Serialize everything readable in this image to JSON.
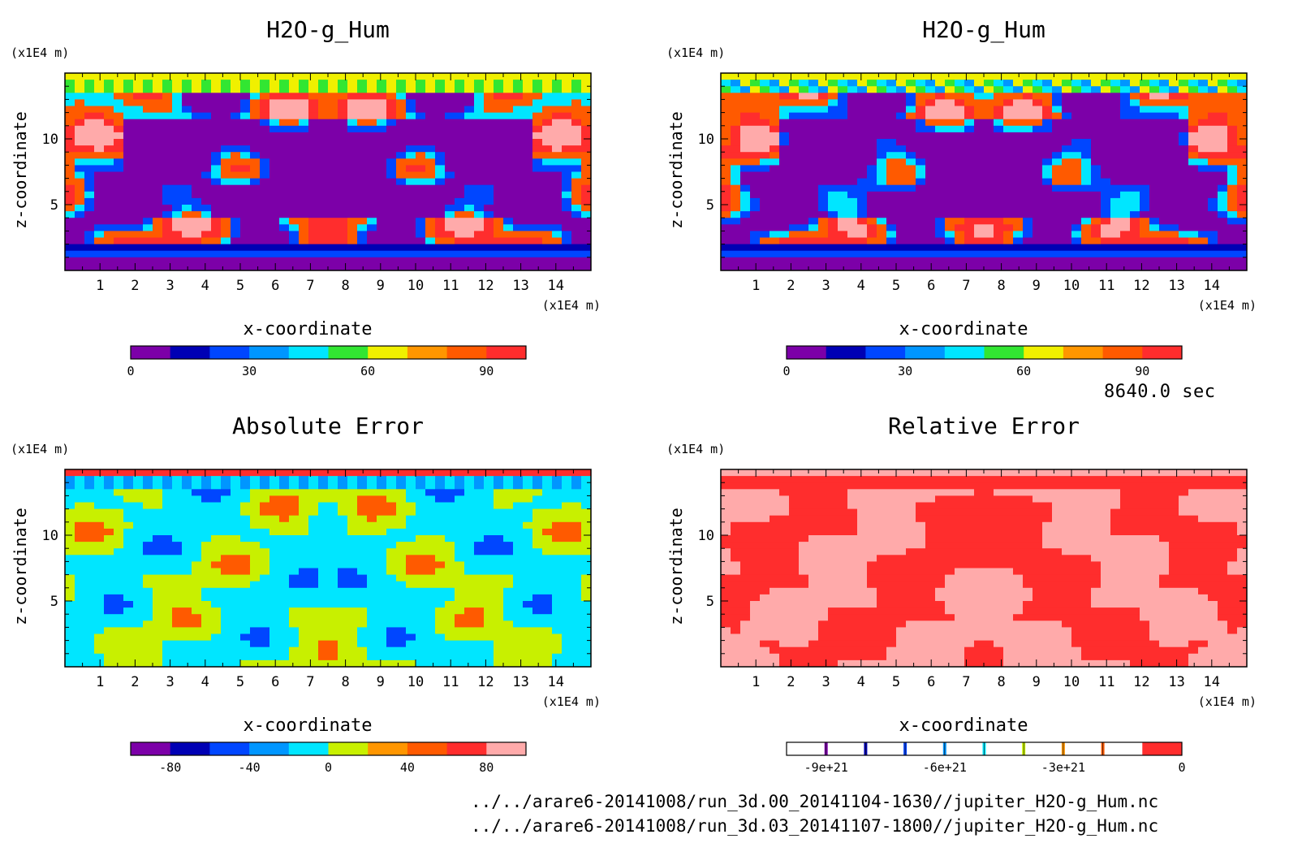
{
  "time_label": "8640.0 sec",
  "files": [
    "../../arare6-20141008/run_3d.00_20141104-1630//jupiter_H2O-g_Hum.nc",
    "../../arare6-20141008/run_3d.03_20141107-1800//jupiter_H2O-g_Hum.nc"
  ],
  "chart_data": [
    {
      "type": "heatmap",
      "title": "H2O-g_Hum",
      "xlabel": "x-coordinate",
      "ylabel": "z-coordinate",
      "x_unit": "(x1E4 m)",
      "y_unit": "(x1E4 m)",
      "xlim": [
        0,
        15
      ],
      "ylim": [
        0,
        15
      ],
      "x_ticks": [
        "1",
        "2",
        "3",
        "4",
        "5",
        "6",
        "7",
        "8",
        "9",
        "10",
        "11",
        "12",
        "13",
        "14"
      ],
      "y_ticks": [
        "5",
        "10"
      ],
      "colorbar": {
        "colors": [
          "#7c00a8",
          "#0000b4",
          "#0046ff",
          "#0096ff",
          "#00e6ff",
          "#32e632",
          "#f0f000",
          "#ff9600",
          "#ff5a00",
          "#ff2d2d"
        ],
        "ticks": [
          "0",
          "30",
          "60",
          "90"
        ],
        "range": [
          0,
          100
        ]
      }
    },
    {
      "type": "heatmap",
      "title": "H2O-g_Hum",
      "xlabel": "x-coordinate",
      "ylabel": "z-coordinate",
      "x_unit": "(x1E4 m)",
      "y_unit": "(x1E4 m)",
      "xlim": [
        0,
        15
      ],
      "ylim": [
        0,
        15
      ],
      "x_ticks": [
        "1",
        "2",
        "3",
        "4",
        "5",
        "6",
        "7",
        "8",
        "9",
        "10",
        "11",
        "12",
        "13",
        "14"
      ],
      "y_ticks": [
        "5",
        "10"
      ],
      "colorbar": {
        "colors": [
          "#7c00a8",
          "#0000b4",
          "#0046ff",
          "#0096ff",
          "#00e6ff",
          "#32e632",
          "#f0f000",
          "#ff9600",
          "#ff5a00",
          "#ff2d2d"
        ],
        "ticks": [
          "0",
          "30",
          "60",
          "90"
        ],
        "range": [
          0,
          100
        ]
      }
    },
    {
      "type": "heatmap",
      "title": "Absolute Error",
      "xlabel": "x-coordinate",
      "ylabel": "z-coordinate",
      "x_unit": "(x1E4 m)",
      "y_unit": "(x1E4 m)",
      "xlim": [
        0,
        15
      ],
      "ylim": [
        0,
        15
      ],
      "x_ticks": [
        "1",
        "2",
        "3",
        "4",
        "5",
        "6",
        "7",
        "8",
        "9",
        "10",
        "11",
        "12",
        "13",
        "14"
      ],
      "y_ticks": [
        "5",
        "10"
      ],
      "colorbar": {
        "colors": [
          "#7c00a8",
          "#0000b4",
          "#0046ff",
          "#0096ff",
          "#00e6ff",
          "#c8f000",
          "#ff9600",
          "#ff5a00",
          "#ff2d2d",
          "#ffaaaa"
        ],
        "ticks": [
          "-80",
          "-40",
          "0",
          "40",
          "80"
        ],
        "range": [
          -100,
          100
        ]
      }
    },
    {
      "type": "heatmap",
      "title": "Relative Error",
      "xlabel": "x-coordinate",
      "ylabel": "z-coordinate",
      "x_unit": "(x1E4 m)",
      "y_unit": "(x1E4 m)",
      "xlim": [
        0,
        15
      ],
      "ylim": [
        0,
        15
      ],
      "x_ticks": [
        "1",
        "2",
        "3",
        "4",
        "5",
        "6",
        "7",
        "8",
        "9",
        "10",
        "11",
        "12",
        "13",
        "14"
      ],
      "y_ticks": [
        "5",
        "10"
      ],
      "colorbar": {
        "colors": [
          "#ffffff",
          "#ffffff",
          "#ffffff",
          "#ffffff",
          "#ffffff",
          "#ffffff",
          "#ffffff",
          "#ffffff",
          "#ffffff",
          "#ff2d2d"
        ],
        "markers": [
          "#7c00a8",
          "#0000b4",
          "#0046ff",
          "#0096ff",
          "#00e6ff",
          "#c8f000",
          "#ff9600",
          "#ff5a00"
        ],
        "ticks": [
          "-9e+21",
          "-6e+21",
          "-3e+21",
          "0"
        ],
        "range": [
          -1e+22,
          0
        ]
      }
    }
  ]
}
